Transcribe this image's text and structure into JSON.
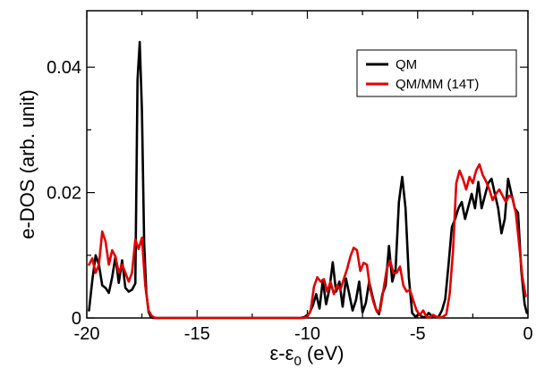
{
  "chart_data": {
    "type": "line",
    "xlabel_main": "ε-ε",
    "xlabel_sub": "0",
    "xlabel_unit": " (eV)",
    "ylabel": "e-DOS (arb. unit)",
    "xlim": [
      -20,
      0
    ],
    "ylim": [
      0,
      0.049
    ],
    "xticks": [
      -20,
      -15,
      -10,
      -5,
      0
    ],
    "xtick_labels": [
      "-20",
      "-15",
      "-10",
      "-5",
      "0"
    ],
    "yticks": [
      0,
      0.02,
      0.04
    ],
    "ytick_labels": [
      "0",
      "0.02",
      "0.04"
    ],
    "grid": false,
    "legend_position": "top-right",
    "series": [
      {
        "name": "QM",
        "color": "#000000",
        "x": [
          -19.9,
          -19.75,
          -19.6,
          -19.45,
          -19.3,
          -19.15,
          -19.0,
          -18.85,
          -18.7,
          -18.55,
          -18.4,
          -18.25,
          -18.1,
          -17.95,
          -17.8,
          -17.7,
          -17.6,
          -17.5,
          -17.4,
          -17.3,
          -17.2,
          -17.1,
          -17.0,
          -16.8,
          -16.5,
          -15.0,
          -12.0,
          -10.3,
          -10.1,
          -9.9,
          -9.75,
          -9.6,
          -9.45,
          -9.3,
          -9.15,
          -9.0,
          -8.85,
          -8.7,
          -8.55,
          -8.4,
          -8.25,
          -8.1,
          -7.95,
          -7.8,
          -7.65,
          -7.5,
          -7.35,
          -7.2,
          -7.05,
          -6.9,
          -6.75,
          -6.6,
          -6.45,
          -6.3,
          -6.15,
          -6.0,
          -5.85,
          -5.7,
          -5.55,
          -5.4,
          -5.25,
          -5.1,
          -4.95,
          -4.8,
          -4.65,
          -4.5,
          -4.35,
          -4.2,
          -4.05,
          -3.9,
          -3.75,
          -3.6,
          -3.45,
          -3.3,
          -3.15,
          -3.0,
          -2.85,
          -2.7,
          -2.55,
          -2.4,
          -2.25,
          -2.1,
          -1.95,
          -1.8,
          -1.65,
          -1.5,
          -1.35,
          -1.2,
          -1.05,
          -0.9,
          -0.75,
          -0.6,
          -0.45,
          -0.3,
          -0.15,
          -0.05
        ],
        "y": [
          0.0012,
          0.006,
          0.01,
          0.0085,
          0.0052,
          0.0048,
          0.004,
          0.0065,
          0.0098,
          0.0056,
          0.0092,
          0.0048,
          0.0042,
          0.0045,
          0.0055,
          0.038,
          0.044,
          0.033,
          0.012,
          0.004,
          0.001,
          0.0002,
          0,
          0,
          0,
          0,
          0,
          0,
          0.0002,
          0.0008,
          0.002,
          0.0038,
          0.0015,
          0.006,
          0.0022,
          0.0046,
          0.0089,
          0.0042,
          0.0058,
          0.0018,
          0.0063,
          0.0038,
          0.0012,
          0.0028,
          0.0058,
          0.0009,
          0.0024,
          0.0058,
          0.0035,
          0.0015,
          0.0006,
          0.0038,
          0.0052,
          0.0115,
          0.0058,
          0.0078,
          0.0185,
          0.0225,
          0.0175,
          0.0065,
          0.0008,
          0.0002,
          0.0006,
          0.0002,
          0.0001,
          0.0008,
          0.0003,
          0.0001,
          0.0002,
          0.0012,
          0.003,
          0.0085,
          0.0145,
          0.0158,
          0.0175,
          0.0185,
          0.0158,
          0.0178,
          0.0198,
          0.0175,
          0.0217,
          0.0175,
          0.0195,
          0.0215,
          0.0222,
          0.0198,
          0.0175,
          0.0135,
          0.0158,
          0.0222,
          0.0198,
          0.0175,
          0.0168,
          0.0075,
          0.0022,
          0.0008
        ]
      },
      {
        "name": "QM/MM (14T)",
        "color": "#e00000",
        "x": [
          -19.9,
          -19.75,
          -19.6,
          -19.45,
          -19.3,
          -19.15,
          -19.0,
          -18.85,
          -18.7,
          -18.55,
          -18.4,
          -18.25,
          -18.1,
          -17.95,
          -17.8,
          -17.65,
          -17.5,
          -17.35,
          -17.2,
          -17.05,
          -16.9,
          -16.7,
          -16.5,
          -15.0,
          -12.0,
          -10.2,
          -10.0,
          -9.85,
          -9.7,
          -9.55,
          -9.4,
          -9.25,
          -9.1,
          -8.95,
          -8.8,
          -8.65,
          -8.5,
          -8.35,
          -8.2,
          -8.05,
          -7.9,
          -7.75,
          -7.6,
          -7.45,
          -7.3,
          -7.15,
          -7.0,
          -6.85,
          -6.7,
          -6.55,
          -6.4,
          -6.25,
          -6.1,
          -5.95,
          -5.8,
          -5.65,
          -5.5,
          -5.35,
          -5.2,
          -5.05,
          -4.9,
          -4.75,
          -4.6,
          -4.45,
          -4.3,
          -4.15,
          -4.0,
          -3.85,
          -3.7,
          -3.55,
          -3.4,
          -3.25,
          -3.1,
          -2.95,
          -2.8,
          -2.65,
          -2.5,
          -2.35,
          -2.2,
          -2.05,
          -1.9,
          -1.75,
          -1.6,
          -1.45,
          -1.3,
          -1.15,
          -1.0,
          -0.85,
          -0.7,
          -0.55,
          -0.4,
          -0.25,
          -0.1
        ],
        "y": [
          0.0085,
          0.0095,
          0.0072,
          0.0085,
          0.0138,
          0.0122,
          0.0085,
          0.0108,
          0.0098,
          0.0072,
          0.0085,
          0.0072,
          0.0058,
          0.0072,
          0.0125,
          0.011,
          0.0128,
          0.0052,
          0.0012,
          0.0003,
          0,
          0,
          0,
          0,
          0,
          0,
          0.0002,
          0.0012,
          0.005,
          0.0065,
          0.0058,
          0.0062,
          0.0042,
          0.0058,
          0.0038,
          0.0052,
          0.0045,
          0.0062,
          0.0078,
          0.0098,
          0.0112,
          0.0108,
          0.0075,
          0.0088,
          0.0085,
          0.0045,
          0.0025,
          0.001,
          0.0012,
          0.0045,
          0.0078,
          0.0092,
          0.0072,
          0.0072,
          0.0082,
          0.0052,
          0.0042,
          0.0045,
          0.0028,
          0.0012,
          0.0005,
          0.0012,
          0.0002,
          0.0001,
          0.0005,
          0.0002,
          0.0001,
          0.0002,
          0.0006,
          0.0038,
          0.0105,
          0.0215,
          0.0235,
          0.0222,
          0.0205,
          0.0225,
          0.0215,
          0.0235,
          0.0245,
          0.0228,
          0.0218,
          0.0205,
          0.0188,
          0.0198,
          0.0205,
          0.0195,
          0.0185,
          0.0195,
          0.0192,
          0.0168,
          0.0118,
          0.0065,
          0.0035
        ]
      }
    ]
  }
}
